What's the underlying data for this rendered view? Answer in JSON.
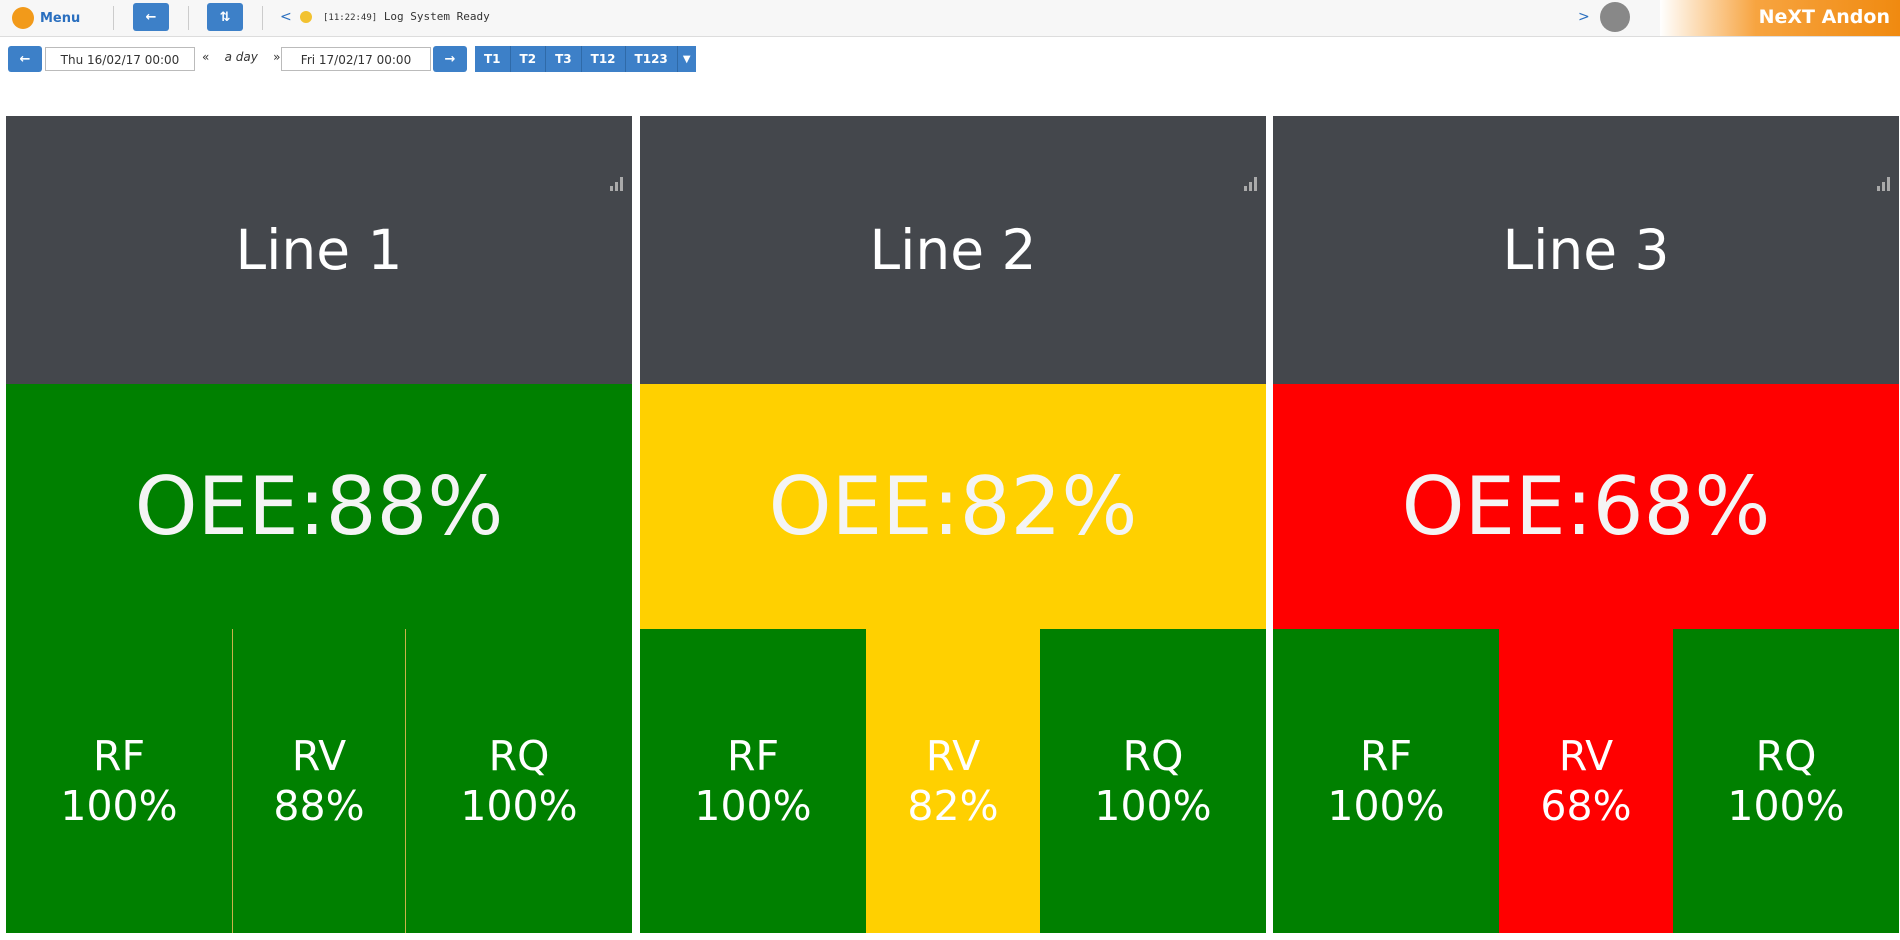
{
  "toolbar": {
    "menu": "Menu",
    "log_time": "[11:22:49]",
    "log_message": "Log System Ready",
    "brand": "NeXT Andon"
  },
  "date_range": {
    "from": "Thu 16/02/17 00:00",
    "period": "a day",
    "to": "Fri 17/02/17 00:00",
    "shifts": [
      "T1",
      "T2",
      "T3",
      "T12",
      "T123"
    ]
  },
  "lines": [
    {
      "name": "Line 1",
      "oee": "OEE:88%",
      "color": "#008000",
      "metrics": [
        {
          "label": "RF",
          "value": "100%",
          "color": "#008000"
        },
        {
          "label": "RV",
          "value": "88%",
          "color": "#008000"
        },
        {
          "label": "RQ",
          "value": "100%",
          "color": "#008000"
        }
      ]
    },
    {
      "name": "Line 2",
      "oee": "OEE:82%",
      "color": "#ffd000",
      "metrics": [
        {
          "label": "RF",
          "value": "100%",
          "color": "#008000"
        },
        {
          "label": "RV",
          "value": "82%",
          "color": "#ffd000"
        },
        {
          "label": "RQ",
          "value": "100%",
          "color": "#008000"
        }
      ]
    },
    {
      "name": "Line 3",
      "oee": "OEE:68%",
      "color": "#ff0000",
      "metrics": [
        {
          "label": "RF",
          "value": "100%",
          "color": "#008000"
        },
        {
          "label": "RV",
          "value": "68%",
          "color": "#ff0000"
        },
        {
          "label": "RQ",
          "value": "100%",
          "color": "#008000"
        }
      ]
    }
  ]
}
